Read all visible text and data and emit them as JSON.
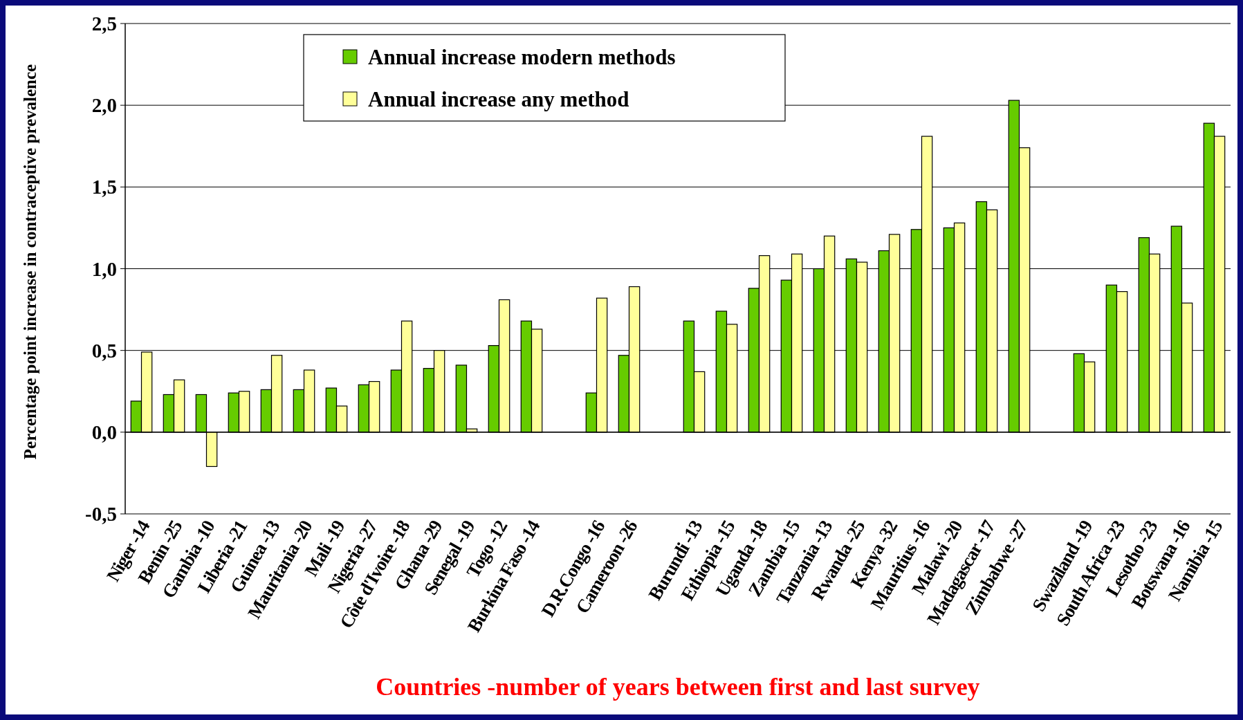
{
  "chart_data": {
    "type": "bar",
    "categories": [
      "Niger -14",
      "Benin -25",
      "Gambia -10",
      "Liberia -21",
      "Guinea -13",
      "Mauritania -20",
      "Mali -19",
      "Nigeria -27",
      "Côte d'Ivoire -18",
      "Ghana -29",
      "Senegal -19",
      "Togo -12",
      "Burkina Faso -14",
      null,
      "D.R.Congo -16",
      "Cameroon -26",
      null,
      "Burundi -13",
      "Ethiopia -15",
      "Uganda -18",
      "Zambia -15",
      "Tanzania -13",
      "Rwanda -25",
      "Kenya -32",
      "Mauritius -16",
      "Malawi -20",
      "Madagascar -17",
      "Zimbabwe -27",
      null,
      "Swaziland -19",
      "South Africa -23",
      "Lesotho -23",
      "Botswana -16",
      "Namibia -15"
    ],
    "series": [
      {
        "name": "Annual increase modern methods",
        "color": "#66cc00",
        "values": [
          0.19,
          0.23,
          0.23,
          0.24,
          0.26,
          0.26,
          0.27,
          0.29,
          0.38,
          0.39,
          0.41,
          0.53,
          0.68,
          null,
          0.24,
          0.47,
          null,
          0.68,
          0.74,
          0.88,
          0.93,
          1.0,
          1.06,
          1.11,
          1.24,
          1.25,
          1.41,
          2.03,
          null,
          0.48,
          0.9,
          1.19,
          1.26,
          1.89
        ]
      },
      {
        "name": "Annual increase any method",
        "color": "#ffff99",
        "values": [
          0.49,
          0.32,
          -0.21,
          0.25,
          0.47,
          0.38,
          0.16,
          0.31,
          0.68,
          0.5,
          0.02,
          0.81,
          0.63,
          null,
          0.82,
          0.89,
          null,
          0.37,
          0.66,
          1.08,
          1.09,
          1.2,
          1.04,
          1.21,
          1.81,
          1.28,
          1.36,
          1.74,
          null,
          0.43,
          0.86,
          1.09,
          0.79,
          1.81
        ]
      }
    ],
    "ylabel": "Percentage point increase in contraceptive prevalence",
    "xlabel": "Countries -number of years between first and last survey",
    "ylim": [
      -0.5,
      2.5
    ],
    "yticks": [
      {
        "value": -0.5,
        "label": "-0,5"
      },
      {
        "value": 0,
        "label": "0,0"
      },
      {
        "value": 0.5,
        "label": "0,5"
      },
      {
        "value": 1,
        "label": "1,0"
      },
      {
        "value": 1.5,
        "label": "1,5"
      },
      {
        "value": 2,
        "label": "2,0"
      },
      {
        "value": 2.5,
        "label": "2,5"
      }
    ],
    "grid": "y",
    "legend": "top"
  }
}
